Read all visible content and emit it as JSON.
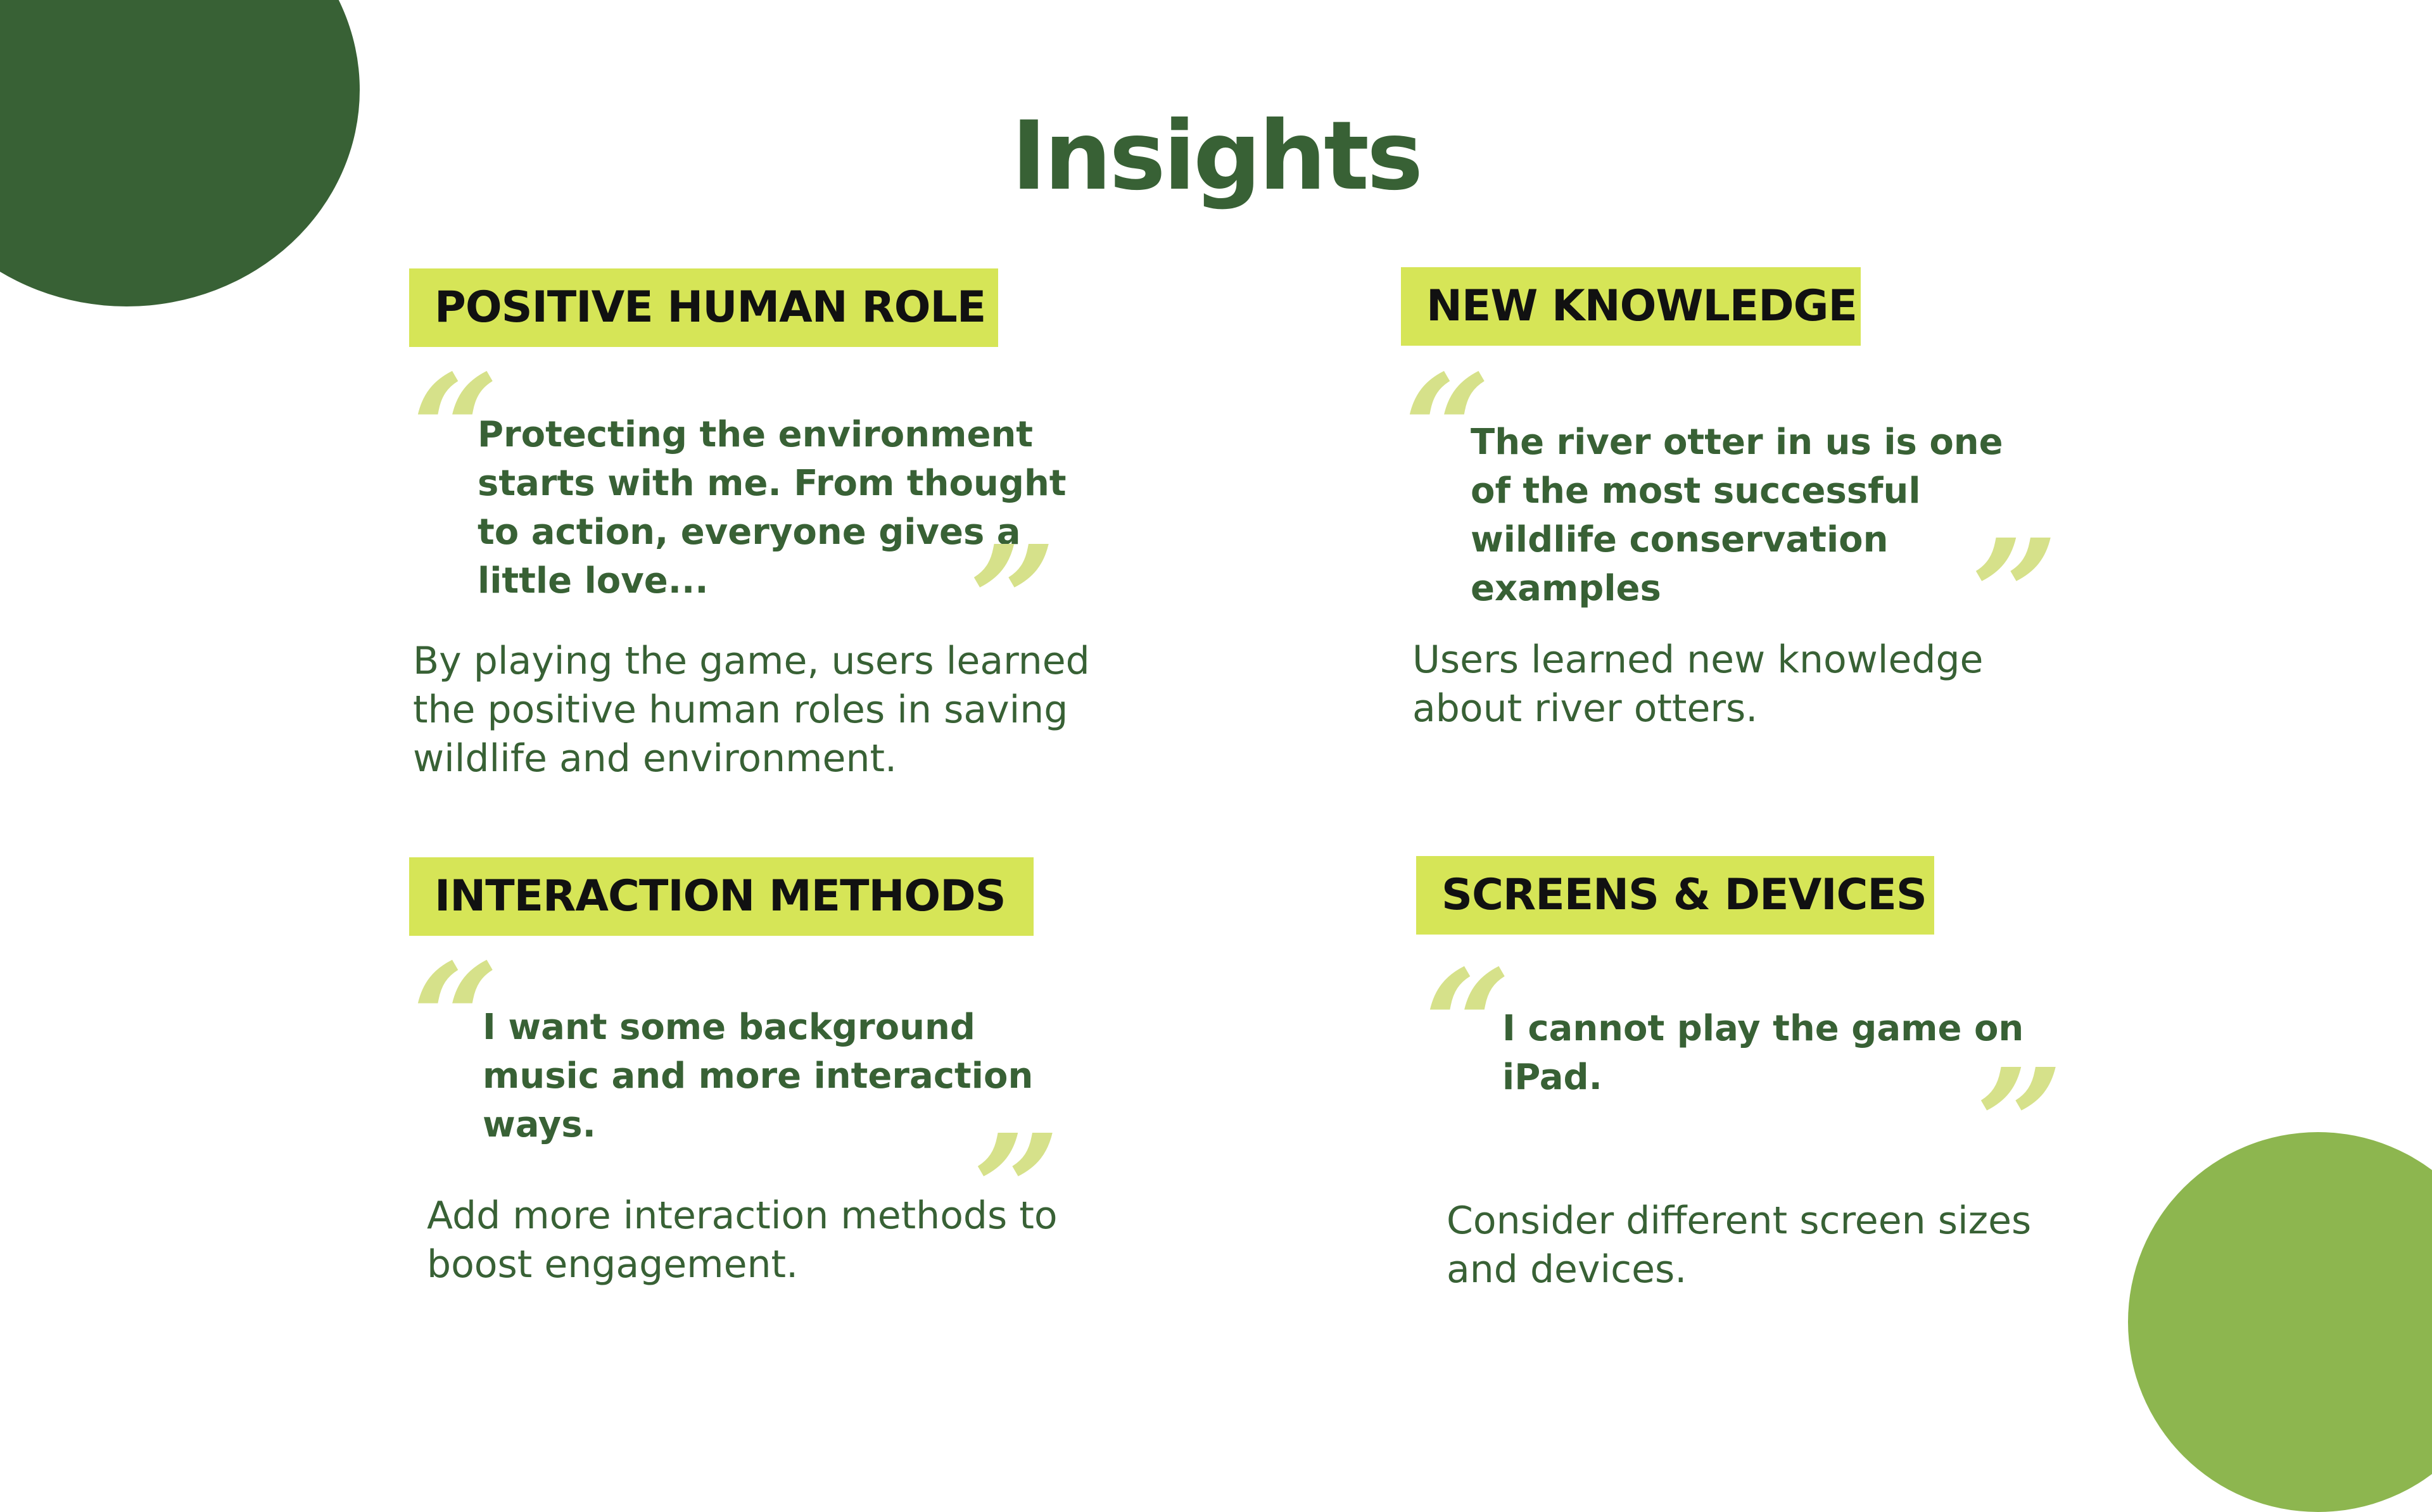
{
  "title": "Insights",
  "colors": {
    "dark_green": "#386135",
    "light_green": "#8db64f",
    "highlight": "#d6e557",
    "quote_mark": "#d6e18a"
  },
  "cards": [
    {
      "heading": "POSITIVE HUMAN ROLE",
      "open_quote": "“",
      "quote": "Protecting the environment starts with me. From thought to action, everyone gives a little love...",
      "close_quote": "”",
      "description": "By playing the game, users learned the positive human roles in saving wildlife and environment."
    },
    {
      "heading": "NEW KNOWLEDGE",
      "open_quote": "“",
      "quote": "The river otter in us is one of the most successful wildlife conservation examples",
      "close_quote": "”",
      "description": "Users learned new knowledge about river otters."
    },
    {
      "heading": "INTERACTION METHODS",
      "open_quote": "“",
      "quote": "I want some background music and more interaction ways.",
      "close_quote": "”",
      "description": "Add more interaction methods to boost engagement."
    },
    {
      "heading": "SCREENS & DEVICES",
      "open_quote": "“",
      "quote": "I cannot play the game on iPad.",
      "close_quote": "”",
      "description": "Consider different screen sizes and devices."
    }
  ]
}
